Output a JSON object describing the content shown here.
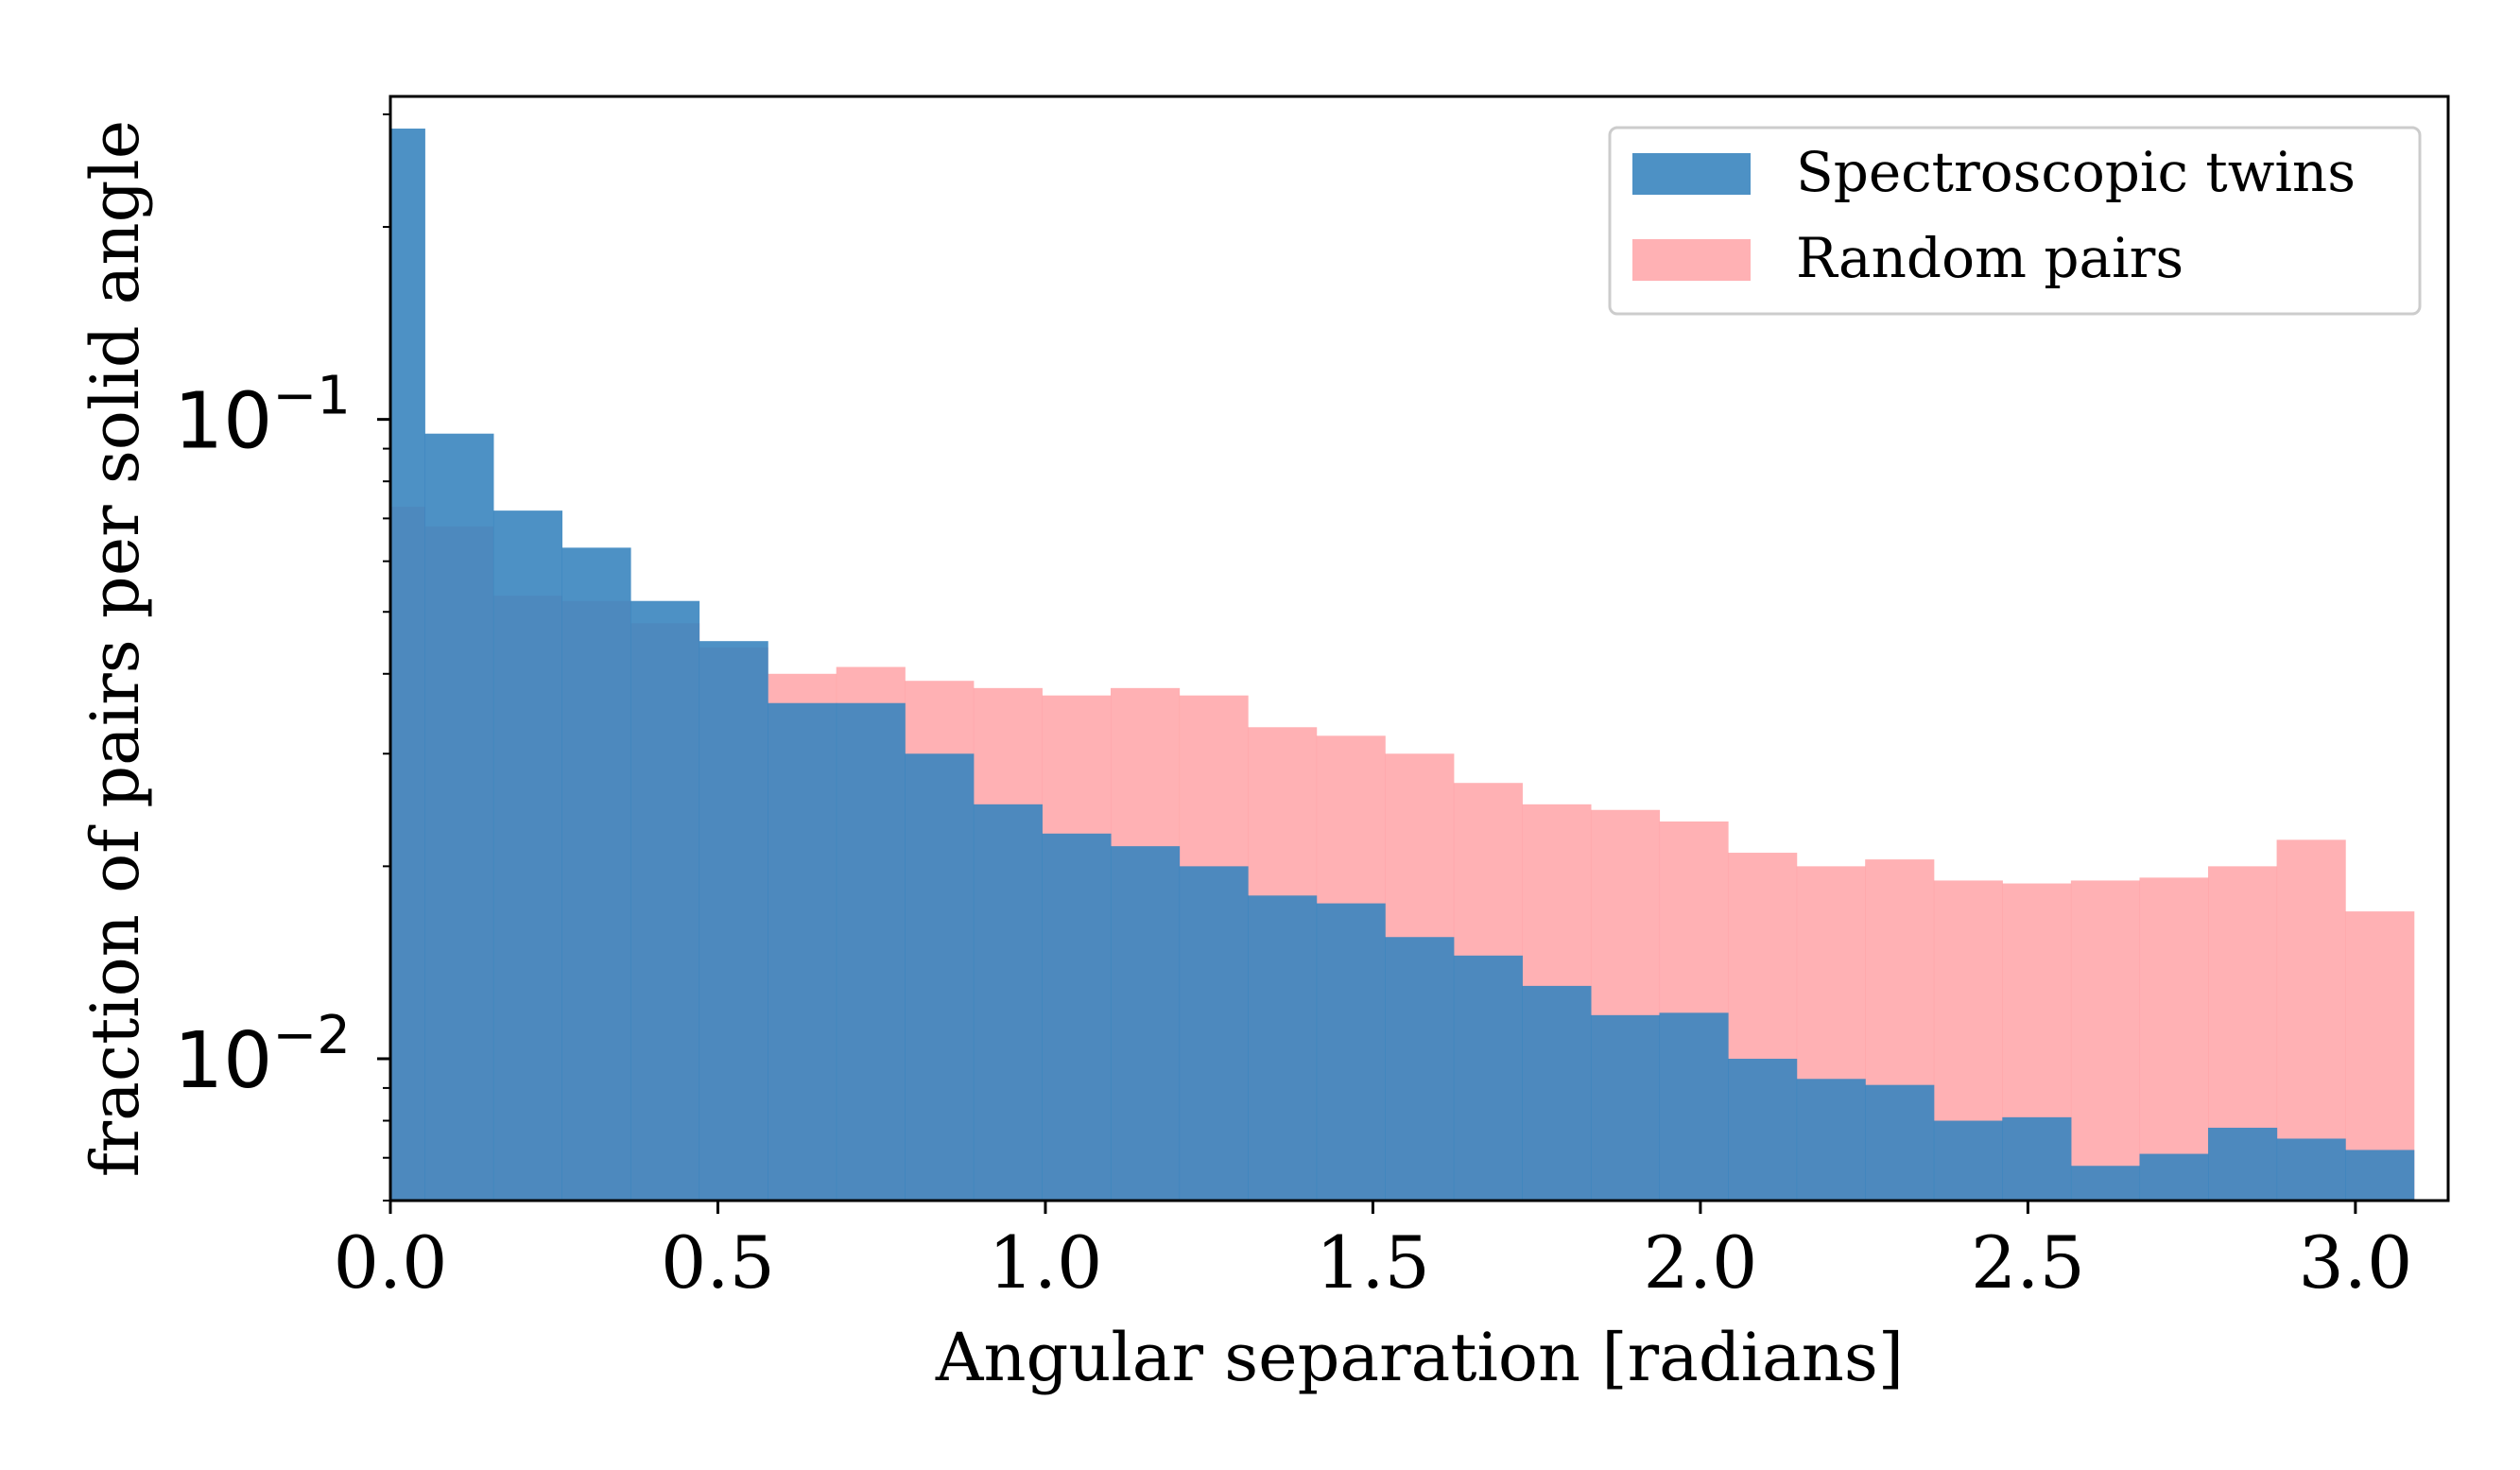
{
  "chart_data": {
    "type": "bar",
    "xlabel": "Angular separation [radians]",
    "ylabel": "fraction of pairs per solid angle",
    "xlim": [
      0.0,
      3.1416
    ],
    "ylim": [
      0.006,
      0.32
    ],
    "yscale": "log",
    "grid": false,
    "legend_position": "top-right",
    "x_ticks": [
      "0.0",
      "0.5",
      "1.0",
      "1.5",
      "2.0",
      "2.5",
      "3.0"
    ],
    "y_ticks": [
      {
        "base": "10",
        "exp": "−1",
        "value": 0.1
      },
      {
        "base": "10",
        "exp": "−2",
        "value": 0.01
      }
    ],
    "bin_edges": [
      0.0,
      0.0524,
      0.1571,
      0.2618,
      0.3665,
      0.4712,
      0.576,
      0.6807,
      0.7854,
      0.8901,
      0.9948,
      1.0996,
      1.2043,
      1.309,
      1.4137,
      1.5184,
      1.6232,
      1.7279,
      1.8326,
      1.9373,
      2.042,
      2.1468,
      2.2515,
      2.3562,
      2.4609,
      2.5656,
      2.6704,
      2.7751,
      2.8798,
      2.9845,
      3.0892
    ],
    "series": [
      {
        "name": "Spectroscopic twins",
        "color": "#3a85bf",
        "opacity": 0.9,
        "values": [
          0.285,
          0.095,
          0.072,
          0.063,
          0.052,
          0.045,
          0.036,
          0.036,
          0.03,
          0.025,
          0.0225,
          0.0215,
          0.02,
          0.018,
          0.0175,
          0.0155,
          0.0145,
          0.013,
          0.0117,
          0.0118,
          0.01,
          0.0093,
          0.0091,
          0.008,
          0.0081,
          0.0068,
          0.0071,
          0.0078,
          0.0075,
          0.0072
        ]
      },
      {
        "name": "Random pairs",
        "color": "#ffa3a7",
        "opacity": 0.85,
        "values": [
          0.073,
          0.068,
          0.053,
          0.052,
          0.048,
          0.044,
          0.04,
          0.041,
          0.039,
          0.038,
          0.037,
          0.038,
          0.037,
          0.033,
          0.032,
          0.03,
          0.027,
          0.025,
          0.0245,
          0.0235,
          0.021,
          0.02,
          0.0205,
          0.019,
          0.0188,
          0.019,
          0.0192,
          0.02,
          0.022,
          0.017
        ]
      }
    ]
  }
}
